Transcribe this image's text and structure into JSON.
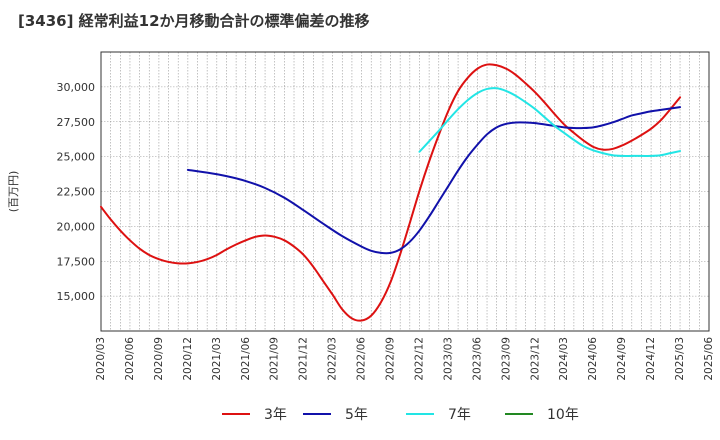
{
  "chart_data": {
    "type": "line",
    "title": "[3436]  経常利益12か月移動合計の標準偏差の推移",
    "ylabel": "(百万円)",
    "xlabel": "",
    "x_ticks": [
      "2020/03",
      "2020/06",
      "2020/09",
      "2020/12",
      "2021/03",
      "2021/06",
      "2021/09",
      "2021/12",
      "2022/03",
      "2022/06",
      "2022/09",
      "2022/12",
      "2023/03",
      "2023/06",
      "2023/09",
      "2023/12",
      "2024/03",
      "2024/06",
      "2024/09",
      "2024/12",
      "2025/03",
      "2025/06"
    ],
    "y_ticks": [
      15000,
      17500,
      20000,
      22500,
      25000,
      27500,
      30000
    ],
    "y_tick_labels": [
      "15,000",
      "17,500",
      "20,000",
      "22,500",
      "25,000",
      "27,500",
      "30,000"
    ],
    "ylim": [
      12500,
      32500
    ],
    "grid": true,
    "legend_position": "bottom",
    "series": [
      {
        "name": "3年",
        "color": "#dd1111",
        "points": [
          [
            "2020/03",
            21400
          ],
          [
            "2020/04",
            20500
          ],
          [
            "2020/05",
            19700
          ],
          [
            "2020/06",
            19000
          ],
          [
            "2020/07",
            18400
          ],
          [
            "2020/08",
            17950
          ],
          [
            "2020/09",
            17650
          ],
          [
            "2020/10",
            17450
          ],
          [
            "2020/11",
            17350
          ],
          [
            "2020/12",
            17350
          ],
          [
            "2021/01",
            17450
          ],
          [
            "2021/02",
            17650
          ],
          [
            "2021/03",
            17950
          ],
          [
            "2021/04",
            18350
          ],
          [
            "2021/05",
            18700
          ],
          [
            "2021/06",
            19000
          ],
          [
            "2021/07",
            19250
          ],
          [
            "2021/08",
            19350
          ],
          [
            "2021/09",
            19250
          ],
          [
            "2021/10",
            19000
          ],
          [
            "2021/11",
            18550
          ],
          [
            "2021/12",
            17950
          ],
          [
            "2022/01",
            17100
          ],
          [
            "2022/02",
            16100
          ],
          [
            "2022/03",
            15100
          ],
          [
            "2022/04",
            14050
          ],
          [
            "2022/05",
            13400
          ],
          [
            "2022/06",
            13250
          ],
          [
            "2022/07",
            13600
          ],
          [
            "2022/08",
            14550
          ],
          [
            "2022/09",
            16000
          ],
          [
            "2022/10",
            18000
          ],
          [
            "2022/11",
            20250
          ],
          [
            "2022/12",
            22550
          ],
          [
            "2023/01",
            24650
          ],
          [
            "2023/02",
            26550
          ],
          [
            "2023/03",
            28300
          ],
          [
            "2023/04",
            29700
          ],
          [
            "2023/05",
            30650
          ],
          [
            "2023/06",
            31300
          ],
          [
            "2023/07",
            31600
          ],
          [
            "2023/08",
            31550
          ],
          [
            "2023/09",
            31300
          ],
          [
            "2023/10",
            30850
          ],
          [
            "2023/11",
            30250
          ],
          [
            "2023/12",
            29600
          ],
          [
            "2024/01",
            28850
          ],
          [
            "2024/02",
            28050
          ],
          [
            "2024/03",
            27300
          ],
          [
            "2024/04",
            26700
          ],
          [
            "2024/05",
            26150
          ],
          [
            "2024/06",
            25700
          ],
          [
            "2024/07",
            25500
          ],
          [
            "2024/08",
            25550
          ],
          [
            "2024/09",
            25800
          ],
          [
            "2024/10",
            26150
          ],
          [
            "2024/11",
            26550
          ],
          [
            "2024/12",
            27000
          ],
          [
            "2025/01",
            27600
          ],
          [
            "2025/02",
            28400
          ],
          [
            "2025/03",
            29250
          ]
        ]
      },
      {
        "name": "5年",
        "color": "#1111aa",
        "points": [
          [
            "2020/12",
            24050
          ],
          [
            "2021/02",
            23850
          ],
          [
            "2021/04",
            23600
          ],
          [
            "2021/06",
            23250
          ],
          [
            "2021/08",
            22750
          ],
          [
            "2021/10",
            22050
          ],
          [
            "2021/12",
            21150
          ],
          [
            "2022/02",
            20200
          ],
          [
            "2022/04",
            19300
          ],
          [
            "2022/06",
            18550
          ],
          [
            "2022/07",
            18250
          ],
          [
            "2022/08",
            18100
          ],
          [
            "2022/09",
            18100
          ],
          [
            "2022/10",
            18350
          ],
          [
            "2022/11",
            18900
          ],
          [
            "2022/12",
            19700
          ],
          [
            "2023/01",
            20700
          ],
          [
            "2023/02",
            21800
          ],
          [
            "2023/03",
            22900
          ],
          [
            "2023/04",
            24000
          ],
          [
            "2023/05",
            25000
          ],
          [
            "2023/06",
            25850
          ],
          [
            "2023/07",
            26600
          ],
          [
            "2023/08",
            27100
          ],
          [
            "2023/09",
            27350
          ],
          [
            "2023/10",
            27450
          ],
          [
            "2023/11",
            27450
          ],
          [
            "2023/12",
            27400
          ],
          [
            "2024/01",
            27300
          ],
          [
            "2024/02",
            27200
          ],
          [
            "2024/03",
            27100
          ],
          [
            "2024/04",
            27050
          ],
          [
            "2024/05",
            27050
          ],
          [
            "2024/06",
            27100
          ],
          [
            "2024/07",
            27250
          ],
          [
            "2024/08",
            27450
          ],
          [
            "2024/09",
            27700
          ],
          [
            "2024/10",
            27950
          ],
          [
            "2024/11",
            28100
          ],
          [
            "2024/12",
            28250
          ],
          [
            "2025/01",
            28350
          ],
          [
            "2025/02",
            28450
          ],
          [
            "2025/03",
            28550
          ]
        ]
      },
      {
        "name": "7年",
        "color": "#22e5e5",
        "points": [
          [
            "2022/12",
            25350
          ],
          [
            "2023/01",
            26100
          ],
          [
            "2023/02",
            26850
          ],
          [
            "2023/03",
            27650
          ],
          [
            "2023/04",
            28400
          ],
          [
            "2023/05",
            29050
          ],
          [
            "2023/06",
            29550
          ],
          [
            "2023/07",
            29850
          ],
          [
            "2023/08",
            29900
          ],
          [
            "2023/09",
            29700
          ],
          [
            "2023/10",
            29350
          ],
          [
            "2023/11",
            28900
          ],
          [
            "2023/12",
            28400
          ],
          [
            "2024/01",
            27800
          ],
          [
            "2024/02",
            27200
          ],
          [
            "2024/03",
            26700
          ],
          [
            "2024/04",
            26200
          ],
          [
            "2024/05",
            25750
          ],
          [
            "2024/06",
            25450
          ],
          [
            "2024/07",
            25250
          ],
          [
            "2024/08",
            25100
          ],
          [
            "2024/09",
            25050
          ],
          [
            "2024/10",
            25050
          ],
          [
            "2024/11",
            25050
          ],
          [
            "2024/12",
            25050
          ],
          [
            "2025/01",
            25100
          ],
          [
            "2025/02",
            25250
          ],
          [
            "2025/03",
            25400
          ]
        ]
      },
      {
        "name": "10年",
        "color": "#228822",
        "points": []
      }
    ]
  }
}
